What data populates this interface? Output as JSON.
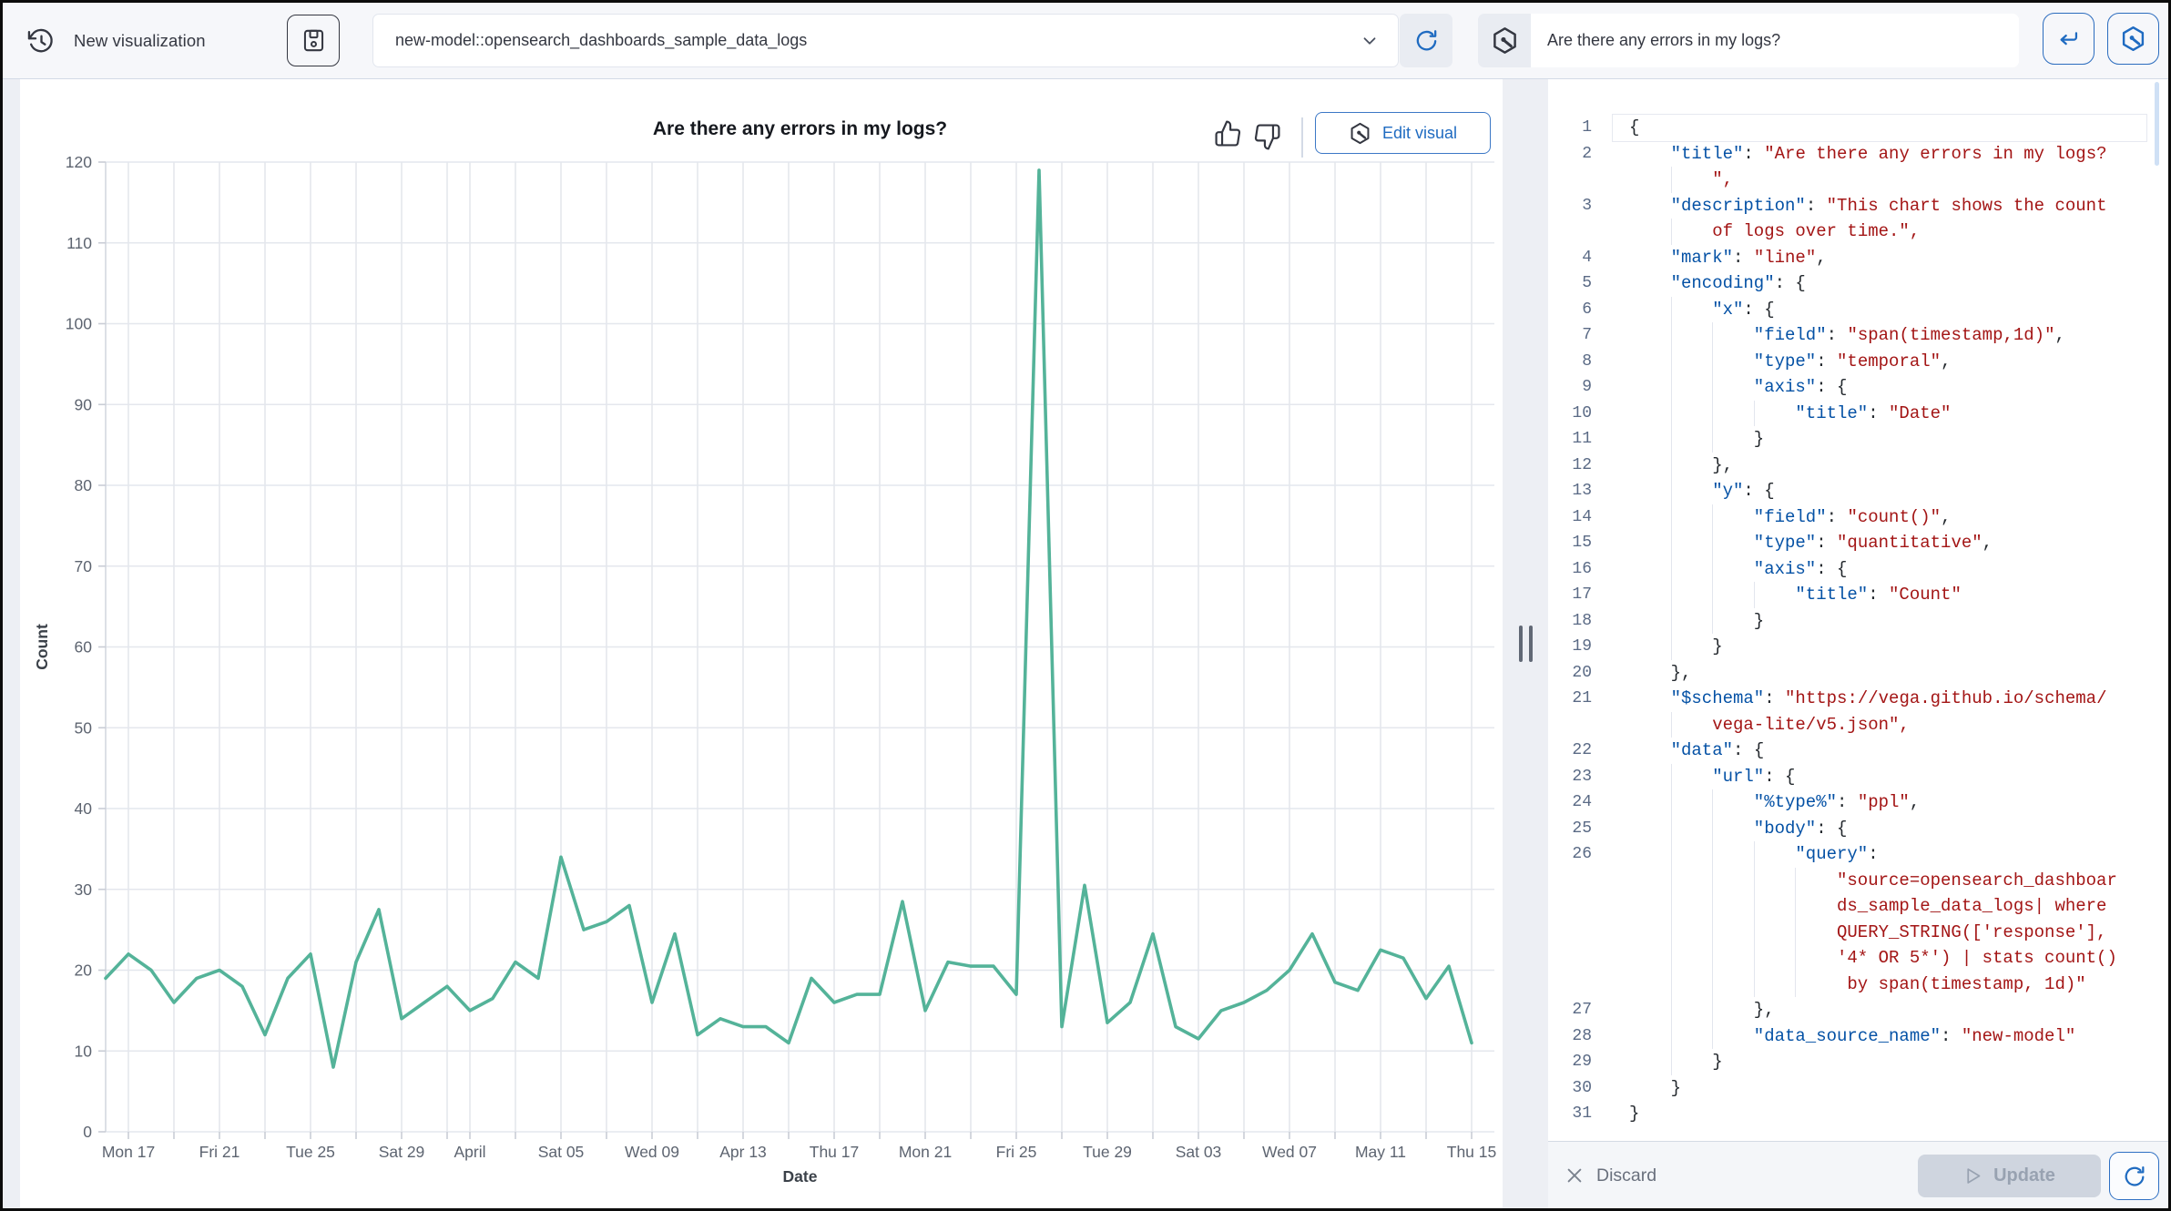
{
  "toolbar": {
    "title": "New visualization",
    "dataset_selector": "new-model::opensearch_dashboards_sample_data_logs",
    "question_input": "Are there any errors in my logs?"
  },
  "chart_panel": {
    "title": "Are there any errors in my logs?",
    "edit_visual_label": "Edit visual"
  },
  "chart_data": {
    "type": "line",
    "title": "Are there any errors in my logs?",
    "xlabel": "Date",
    "ylabel": "Count",
    "ylim": [
      0,
      120
    ],
    "y_ticks": [
      0,
      10,
      20,
      30,
      40,
      50,
      60,
      70,
      80,
      90,
      100,
      110,
      120
    ],
    "x_start": "2025-03-16",
    "x_interval": "1 day",
    "values": [
      19,
      22,
      20,
      16,
      19,
      20,
      18,
      12,
      19,
      22,
      8,
      21,
      27.5,
      14,
      16,
      18,
      15,
      16.5,
      21,
      19,
      34,
      25,
      26,
      28,
      16,
      24.5,
      12,
      14,
      13,
      13,
      11,
      19,
      16,
      17,
      17,
      28.5,
      15,
      21,
      20.5,
      20.5,
      17,
      119,
      13,
      30.5,
      13.5,
      16,
      24.5,
      13,
      11.5,
      15,
      16,
      17.5,
      20,
      24.5,
      18.5,
      17.5,
      22.5,
      21.5,
      16.5,
      20.5,
      11
    ],
    "x_ticks": [
      {
        "day": 1,
        "label": "Mon 17"
      },
      {
        "day": 5,
        "label": "Fri 21"
      },
      {
        "day": 9,
        "label": "Tue 25"
      },
      {
        "day": 13,
        "label": "Sat 29"
      },
      {
        "day": 16,
        "label": "April"
      },
      {
        "day": 20,
        "label": "Sat 05"
      },
      {
        "day": 24,
        "label": "Wed 09"
      },
      {
        "day": 28,
        "label": "Apr 13"
      },
      {
        "day": 32,
        "label": "Thu 17"
      },
      {
        "day": 36,
        "label": "Mon 21"
      },
      {
        "day": 40,
        "label": "Fri 25"
      },
      {
        "day": 44,
        "label": "Tue 29"
      },
      {
        "day": 48,
        "label": "Sat 03"
      },
      {
        "day": 52,
        "label": "Wed 07"
      },
      {
        "day": 56,
        "label": "May 11"
      },
      {
        "day": 60,
        "label": "Thu 15"
      }
    ],
    "x_gridline_days": [
      1,
      3,
      5,
      7,
      9,
      11,
      13,
      15,
      16,
      18,
      20,
      22,
      24,
      26,
      28,
      30,
      32,
      34,
      36,
      38,
      40,
      42,
      44,
      46,
      48,
      50,
      52,
      54,
      56,
      58,
      60
    ],
    "grid": true,
    "legend": false,
    "line_color": "#54b399"
  },
  "editor": {
    "rows": [
      {
        "n": "1",
        "col": 0,
        "g": 0,
        "seg": [
          [
            "p",
            "{"
          ]
        ]
      },
      {
        "n": "2",
        "col": 4,
        "g": 0,
        "seg": [
          [
            "k",
            "\"title\""
          ],
          [
            "p",
            ": "
          ],
          [
            "s",
            "\"Are there any errors in my logs?"
          ]
        ]
      },
      {
        "n": "",
        "col": 8,
        "g": 1,
        "seg": [
          [
            "s",
            "\","
          ]
        ]
      },
      {
        "n": "3",
        "col": 4,
        "g": 0,
        "seg": [
          [
            "k",
            "\"description\""
          ],
          [
            "p",
            ": "
          ],
          [
            "s",
            "\"This chart shows the count"
          ]
        ]
      },
      {
        "n": "",
        "col": 8,
        "g": 1,
        "seg": [
          [
            "s",
            "of logs over time.\","
          ]
        ]
      },
      {
        "n": "4",
        "col": 4,
        "g": 0,
        "seg": [
          [
            "k",
            "\"mark\""
          ],
          [
            "p",
            ": "
          ],
          [
            "s",
            "\"line\""
          ],
          [
            "p",
            ","
          ]
        ]
      },
      {
        "n": "5",
        "col": 4,
        "g": 0,
        "seg": [
          [
            "k",
            "\"encoding\""
          ],
          [
            "p",
            ": {"
          ]
        ]
      },
      {
        "n": "6",
        "col": 8,
        "g": 1,
        "seg": [
          [
            "k",
            "\"x\""
          ],
          [
            "p",
            ": {"
          ]
        ]
      },
      {
        "n": "7",
        "col": 12,
        "g": 2,
        "seg": [
          [
            "k",
            "\"field\""
          ],
          [
            "p",
            ": "
          ],
          [
            "s",
            "\"span(timestamp,1d)\""
          ],
          [
            "p",
            ","
          ]
        ]
      },
      {
        "n": "8",
        "col": 12,
        "g": 2,
        "seg": [
          [
            "k",
            "\"type\""
          ],
          [
            "p",
            ": "
          ],
          [
            "s",
            "\"temporal\""
          ],
          [
            "p",
            ","
          ]
        ]
      },
      {
        "n": "9",
        "col": 12,
        "g": 2,
        "seg": [
          [
            "k",
            "\"axis\""
          ],
          [
            "p",
            ": {"
          ]
        ]
      },
      {
        "n": "10",
        "col": 16,
        "g": 3,
        "seg": [
          [
            "k",
            "\"title\""
          ],
          [
            "p",
            ": "
          ],
          [
            "s",
            "\"Date\""
          ]
        ]
      },
      {
        "n": "11",
        "col": 12,
        "g": 2,
        "seg": [
          [
            "p",
            "}"
          ]
        ]
      },
      {
        "n": "12",
        "col": 8,
        "g": 1,
        "seg": [
          [
            "p",
            "},"
          ]
        ]
      },
      {
        "n": "13",
        "col": 8,
        "g": 1,
        "seg": [
          [
            "k",
            "\"y\""
          ],
          [
            "p",
            ": {"
          ]
        ]
      },
      {
        "n": "14",
        "col": 12,
        "g": 2,
        "seg": [
          [
            "k",
            "\"field\""
          ],
          [
            "p",
            ": "
          ],
          [
            "s",
            "\"count()\""
          ],
          [
            "p",
            ","
          ]
        ]
      },
      {
        "n": "15",
        "col": 12,
        "g": 2,
        "seg": [
          [
            "k",
            "\"type\""
          ],
          [
            "p",
            ": "
          ],
          [
            "s",
            "\"quantitative\""
          ],
          [
            "p",
            ","
          ]
        ]
      },
      {
        "n": "16",
        "col": 12,
        "g": 2,
        "seg": [
          [
            "k",
            "\"axis\""
          ],
          [
            "p",
            ": {"
          ]
        ]
      },
      {
        "n": "17",
        "col": 16,
        "g": 3,
        "seg": [
          [
            "k",
            "\"title\""
          ],
          [
            "p",
            ": "
          ],
          [
            "s",
            "\"Count\""
          ]
        ]
      },
      {
        "n": "18",
        "col": 12,
        "g": 2,
        "seg": [
          [
            "p",
            "}"
          ]
        ]
      },
      {
        "n": "19",
        "col": 8,
        "g": 1,
        "seg": [
          [
            "p",
            "}"
          ]
        ]
      },
      {
        "n": "20",
        "col": 4,
        "g": 0,
        "seg": [
          [
            "p",
            "},"
          ]
        ]
      },
      {
        "n": "21",
        "col": 4,
        "g": 0,
        "seg": [
          [
            "k",
            "\"$schema\""
          ],
          [
            "p",
            ": "
          ],
          [
            "s",
            "\"https://vega.github.io/schema/"
          ]
        ]
      },
      {
        "n": "",
        "col": 8,
        "g": 1,
        "seg": [
          [
            "s",
            "vega-lite/v5.json\","
          ]
        ]
      },
      {
        "n": "22",
        "col": 4,
        "g": 0,
        "seg": [
          [
            "k",
            "\"data\""
          ],
          [
            "p",
            ": {"
          ]
        ]
      },
      {
        "n": "23",
        "col": 8,
        "g": 1,
        "seg": [
          [
            "k",
            "\"url\""
          ],
          [
            "p",
            ": {"
          ]
        ]
      },
      {
        "n": "24",
        "col": 12,
        "g": 2,
        "seg": [
          [
            "k",
            "\"%type%\""
          ],
          [
            "p",
            ": "
          ],
          [
            "s",
            "\"ppl\""
          ],
          [
            "p",
            ","
          ]
        ]
      },
      {
        "n": "25",
        "col": 12,
        "g": 2,
        "seg": [
          [
            "k",
            "\"body\""
          ],
          [
            "p",
            ": {"
          ]
        ]
      },
      {
        "n": "26",
        "col": 16,
        "g": 3,
        "seg": [
          [
            "k",
            "\"query\""
          ],
          [
            "p",
            ":"
          ]
        ]
      },
      {
        "n": "",
        "col": 20,
        "g": 4,
        "seg": [
          [
            "s",
            "\"source=opensearch_dashboar"
          ]
        ]
      },
      {
        "n": "",
        "col": 20,
        "g": 4,
        "seg": [
          [
            "s",
            "ds_sample_data_logs| where"
          ]
        ]
      },
      {
        "n": "",
        "col": 20,
        "g": 4,
        "seg": [
          [
            "s",
            "QUERY_STRING(['response'],"
          ]
        ]
      },
      {
        "n": "",
        "col": 20,
        "g": 4,
        "seg": [
          [
            "s",
            "'4* OR 5*') | stats count()"
          ]
        ]
      },
      {
        "n": "",
        "col": 20,
        "g": 4,
        "seg": [
          [
            "s",
            " by span(timestamp, 1d)\""
          ]
        ]
      },
      {
        "n": "27",
        "col": 12,
        "g": 2,
        "seg": [
          [
            "p",
            "},"
          ]
        ]
      },
      {
        "n": "28",
        "col": 12,
        "g": 2,
        "seg": [
          [
            "k",
            "\"data_source_name\""
          ],
          [
            "p",
            ": "
          ],
          [
            "s",
            "\"new-model\""
          ]
        ]
      },
      {
        "n": "29",
        "col": 8,
        "g": 1,
        "seg": [
          [
            "p",
            "}"
          ]
        ]
      },
      {
        "n": "30",
        "col": 4,
        "g": 0,
        "seg": [
          [
            "p",
            "}"
          ]
        ]
      },
      {
        "n": "31",
        "col": 0,
        "g": 0,
        "seg": [
          [
            "p",
            "}"
          ]
        ]
      }
    ]
  },
  "actions": {
    "discard_label": "Discard",
    "update_label": "Update"
  },
  "colors": {
    "accent_blue": "#1f6bc1",
    "line_green": "#54b399",
    "key_blue": "#0451a5",
    "string_red": "#a31515"
  }
}
